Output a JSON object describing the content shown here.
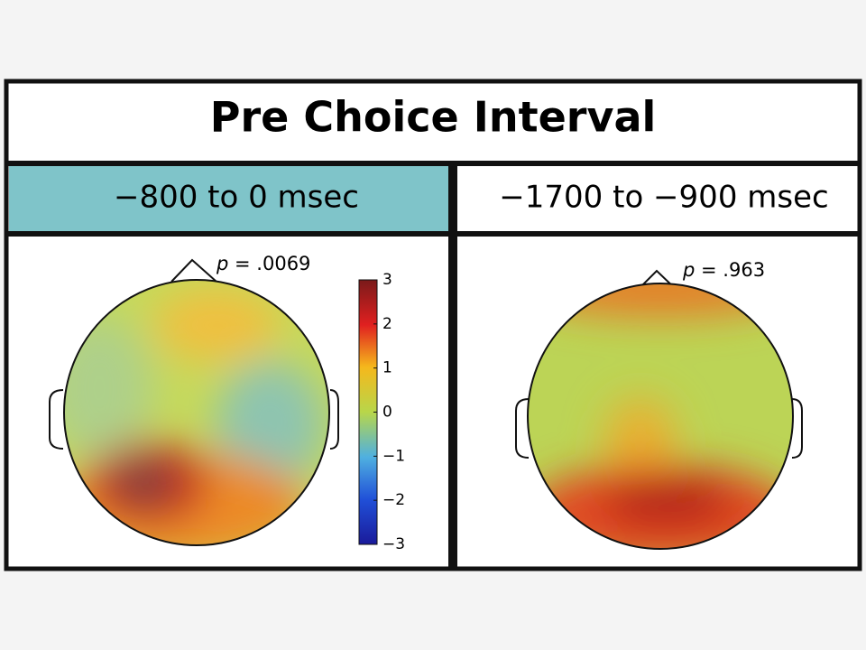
{
  "title": "Pre Choice Interval",
  "panels": [
    {
      "interval": "−800 to 0 msec",
      "p_symbol": "p",
      "p_value": "= .0069"
    },
    {
      "interval": "−1700 to −900 msec",
      "p_symbol": "p",
      "p_value": "= .963"
    }
  ],
  "colorbar": {
    "lim": [
      -3,
      3
    ],
    "ticks": [
      3,
      2,
      1,
      0,
      {
        "value": -1,
        "label": "−1"
      },
      {
        "value": -2,
        "label": "−2"
      },
      {
        "value": -3,
        "label": "−3"
      }
    ]
  }
}
